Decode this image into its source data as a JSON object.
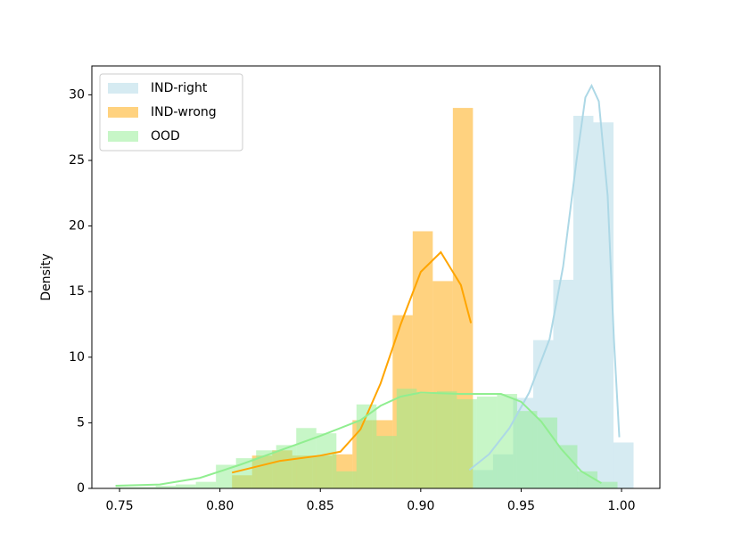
{
  "chart_data": {
    "type": "histogram",
    "ylabel": "Density",
    "xlim": [
      0.7362,
      1.0191
    ],
    "ylim": [
      0,
      32.2
    ],
    "xticks": [
      0.75,
      {
        "value": 0.8,
        "label": "0.80"
      },
      0.85,
      {
        "value": 0.9,
        "label": "0.90"
      },
      0.95,
      {
        "value": 1.0,
        "label": "1.00"
      }
    ],
    "yticks": [
      0,
      5,
      10,
      15,
      20,
      25,
      30
    ],
    "legend": "upper left",
    "series": [
      {
        "name": "IND-right",
        "color": "#add8e6",
        "bins": [
          0.926,
          0.936,
          0.946,
          0.956,
          0.966,
          0.976,
          0.986,
          0.996,
          1.006
        ],
        "values": [
          1.4,
          2.6,
          6.9,
          11.3,
          15.9,
          28.4,
          27.9,
          3.5
        ],
        "kde_x": [
          0.9242,
          0.934,
          0.9442,
          0.954,
          0.9642,
          0.9709,
          0.9776,
          0.982,
          0.9851,
          0.9887,
          0.9931,
          0.9962,
          0.9989
        ],
        "kde_y": [
          1.4,
          2.6,
          4.6,
          7.3,
          11.4,
          16.9,
          25.0,
          29.8,
          30.7,
          29.5,
          22.3,
          11.4,
          3.9
        ]
      },
      {
        "name": "IND-wrong",
        "color": "#ffa500",
        "bins": [
          0.806,
          0.816,
          0.826,
          0.836,
          0.846,
          0.856,
          0.866,
          0.876,
          0.886,
          0.896,
          0.906,
          0.916,
          0.926
        ],
        "values": [
          1.0,
          2.5,
          2.9,
          2.5,
          2.5,
          2.6,
          5.2,
          5.2,
          13.2,
          19.6,
          15.8,
          29.0
        ],
        "kde_x": [
          0.806,
          0.83,
          0.85,
          0.86,
          0.87,
          0.88,
          0.89,
          0.9,
          0.91,
          0.92,
          0.925
        ],
        "kde_y": [
          1.2,
          2.1,
          2.5,
          2.8,
          4.5,
          8.0,
          12.5,
          16.5,
          18.0,
          15.5,
          12.6
        ]
      },
      {
        "name": "OOD",
        "color": "#90ee90",
        "bins": [
          0.748,
          0.758,
          0.768,
          0.778,
          0.788,
          0.798,
          0.808,
          0.818,
          0.828,
          0.838,
          0.848,
          0.858,
          0.868,
          0.878,
          0.888,
          0.898,
          0.908,
          0.918,
          0.928,
          0.938,
          0.948,
          0.958,
          0.968,
          0.978,
          0.988,
          0.998
        ],
        "values": [
          0.1,
          0.1,
          0.2,
          0.3,
          0.5,
          1.8,
          2.3,
          2.9,
          3.3,
          4.6,
          4.2,
          1.3,
          6.4,
          4.0,
          7.6,
          7.2,
          7.4,
          6.8,
          7.0,
          7.2,
          5.9,
          5.4,
          3.3,
          1.3,
          0.5
        ],
        "kde_x": [
          0.748,
          0.77,
          0.79,
          0.81,
          0.83,
          0.85,
          0.87,
          0.88,
          0.89,
          0.9,
          0.92,
          0.94,
          0.95,
          0.96,
          0.97,
          0.98,
          0.99
        ],
        "kde_y": [
          0.2,
          0.3,
          0.8,
          1.8,
          2.9,
          4.0,
          5.2,
          6.3,
          7.0,
          7.3,
          7.2,
          7.2,
          6.6,
          5.1,
          3.0,
          1.3,
          0.4
        ]
      }
    ]
  }
}
